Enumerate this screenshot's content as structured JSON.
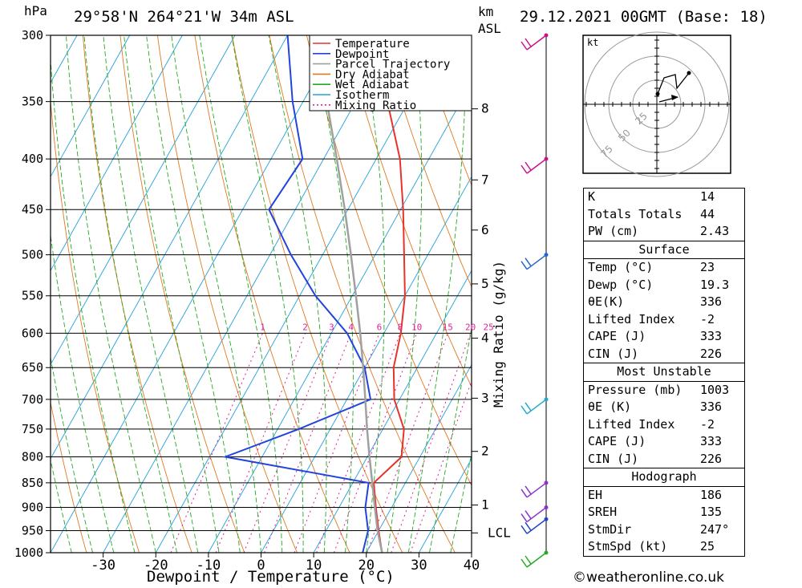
{
  "header": {
    "pressure_unit": "hPa",
    "location": "29°58'N  264°21'W  34m  ASL",
    "km_label": "km",
    "asl_label": "ASL",
    "datetime": "29.12.2021  00GMT  (Base: 18)"
  },
  "colors": {
    "temperature": "#e8322c",
    "dewpoint": "#2244dd",
    "parcel": "#a0a0a0",
    "dry_adiabat": "#e07a20",
    "wet_adiabat": "#22aa22",
    "isotherm": "#22a0dd",
    "mixing_ratio": "#dd2299"
  },
  "chart_data": {
    "type": "line",
    "title": "29°58'N  264°21'W  34m  ASL",
    "xlabel": "Dewpoint / Temperature (°C)",
    "ylabel": "hPa",
    "secondary_ylabel": "Mixing Ratio (g/kg)",
    "y_scale": "log",
    "xlim": [
      -40,
      40
    ],
    "ylim": [
      1000,
      300
    ],
    "x_ticks": [
      -30,
      -20,
      -10,
      0,
      10,
      20,
      30,
      40
    ],
    "pressure_levels": [
      300,
      350,
      400,
      450,
      500,
      550,
      600,
      650,
      700,
      750,
      800,
      850,
      900,
      950,
      1000
    ],
    "height_km_ticks": [
      "8",
      "7",
      "6",
      "5",
      "4",
      "3",
      "2",
      "1",
      "LCL"
    ],
    "mixing_ratio_labels": [
      "1",
      "2",
      "3",
      "4",
      "6",
      "8",
      "10",
      "15",
      "20",
      "25"
    ],
    "grid": true,
    "legend": [
      "Temperature",
      "Dewpoint",
      "Parcel Trajectory",
      "Dry Adiabat",
      "Wet Adiabat",
      "Isotherm",
      "Mixing Ratio"
    ],
    "legend_position": "top-right",
    "series": [
      {
        "name": "Temperature",
        "points": [
          [
            1000,
            23
          ],
          [
            950,
            20
          ],
          [
            900,
            17
          ],
          [
            850,
            14
          ],
          [
            800,
            16.5
          ],
          [
            750,
            14
          ],
          [
            700,
            9
          ],
          [
            650,
            5.5
          ],
          [
            600,
            3.2
          ],
          [
            550,
            0
          ],
          [
            500,
            -4.5
          ],
          [
            450,
            -9.5
          ],
          [
            400,
            -15.5
          ],
          [
            350,
            -24
          ],
          [
            300,
            -34
          ]
        ]
      },
      {
        "name": "Dewpoint",
        "points": [
          [
            1000,
            19.3
          ],
          [
            950,
            18
          ],
          [
            900,
            15
          ],
          [
            850,
            13
          ],
          [
            800,
            -17
          ],
          [
            750,
            -6
          ],
          [
            700,
            4.5
          ],
          [
            650,
            0
          ],
          [
            600,
            -7
          ],
          [
            550,
            -17
          ],
          [
            500,
            -26
          ],
          [
            450,
            -35
          ],
          [
            400,
            -34
          ],
          [
            350,
            -42
          ],
          [
            300,
            -50
          ]
        ]
      },
      {
        "name": "Parcel Trajectory",
        "points": [
          [
            1000,
            23
          ],
          [
            950,
            19.8
          ],
          [
            900,
            16.8
          ],
          [
            850,
            13.7
          ],
          [
            800,
            10.4
          ],
          [
            750,
            7
          ],
          [
            700,
            3.5
          ],
          [
            650,
            -0.3
          ],
          [
            600,
            -4.5
          ],
          [
            550,
            -9.3
          ],
          [
            500,
            -14.6
          ],
          [
            450,
            -20.6
          ],
          [
            400,
            -27.5
          ],
          [
            350,
            -35.5
          ],
          [
            300,
            -44.5
          ]
        ]
      }
    ]
  },
  "winds": [
    {
      "pressure": 300,
      "color": "#cc1188"
    },
    {
      "pressure": 400,
      "color": "#cc1188"
    },
    {
      "pressure": 500,
      "color": "#2266cc"
    },
    {
      "pressure": 700,
      "color": "#22aacc"
    },
    {
      "pressure": 850,
      "color": "#8833cc"
    },
    {
      "pressure": 900,
      "color": "#8833cc"
    },
    {
      "pressure": 925,
      "color": "#2244cc"
    },
    {
      "pressure": 1000,
      "color": "#22aa22"
    }
  ],
  "hodograph": {
    "unit": "kt",
    "ring_labels": [
      "25",
      "50",
      "75"
    ]
  },
  "indices": [
    {
      "label": "K",
      "value": "14"
    },
    {
      "label": "Totals Totals",
      "value": "44"
    },
    {
      "label": "PW (cm)",
      "value": "2.43"
    }
  ],
  "surface": {
    "title": "Surface",
    "rows": [
      {
        "label": "Temp (°C)",
        "value": "23"
      },
      {
        "label": "Dewp (°C)",
        "value": "19.3"
      },
      {
        "label": "θE(K)",
        "value": "336"
      },
      {
        "label": "Lifted Index",
        "value": "-2"
      },
      {
        "label": "CAPE (J)",
        "value": "333"
      },
      {
        "label": "CIN (J)",
        "value": "226"
      }
    ]
  },
  "most_unstable": {
    "title": "Most Unstable",
    "rows": [
      {
        "label": "Pressure (mb)",
        "value": "1003"
      },
      {
        "label": "θE (K)",
        "value": "336"
      },
      {
        "label": "Lifted Index",
        "value": "-2"
      },
      {
        "label": "CAPE (J)",
        "value": "333"
      },
      {
        "label": "CIN (J)",
        "value": "226"
      }
    ]
  },
  "hodograph_params": {
    "title": "Hodograph",
    "rows": [
      {
        "label": "EH",
        "value": "186"
      },
      {
        "label": "SREH",
        "value": "135"
      },
      {
        "label": "StmDir",
        "value": "247°"
      },
      {
        "label": "StmSpd (kt)",
        "value": "25"
      }
    ]
  },
  "credit": "©weatheronline.co.uk"
}
